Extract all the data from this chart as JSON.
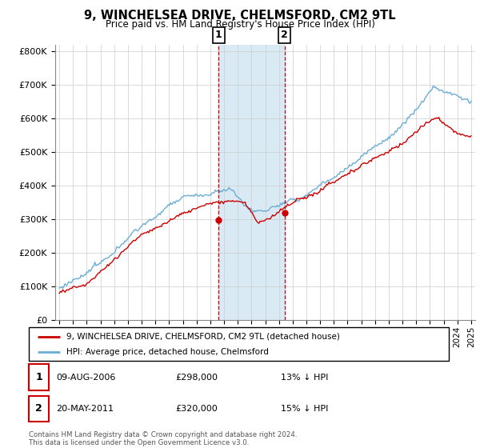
{
  "title": "9, WINCHELSEA DRIVE, CHELMSFORD, CM2 9TL",
  "subtitle": "Price paid vs. HM Land Registry's House Price Index (HPI)",
  "ylabel_ticks": [
    "£0",
    "£100K",
    "£200K",
    "£300K",
    "£400K",
    "£500K",
    "£600K",
    "£700K",
    "£800K"
  ],
  "ytick_values": [
    0,
    100000,
    200000,
    300000,
    400000,
    500000,
    600000,
    700000,
    800000
  ],
  "ylim": [
    0,
    820000
  ],
  "legend_line1": "9, WINCHELSEA DRIVE, CHELMSFORD, CM2 9TL (detached house)",
  "legend_line2": "HPI: Average price, detached house, Chelmsford",
  "sale1_date": "09-AUG-2006",
  "sale1_price": "£298,000",
  "sale1_pct": "13% ↓ HPI",
  "sale2_date": "20-MAY-2011",
  "sale2_price": "£320,000",
  "sale2_pct": "15% ↓ HPI",
  "footnote1": "Contains HM Land Registry data © Crown copyright and database right 2024.",
  "footnote2": "This data is licensed under the Open Government Licence v3.0.",
  "hpi_color": "#6baed6",
  "price_color": "#cc0000",
  "shade_color": "#daeaf5",
  "sale1_x": 2006.6,
  "sale1_y": 298000,
  "sale2_x": 2011.4,
  "sale2_y": 320000,
  "vline1_x": 2006.6,
  "vline2_x": 2011.4,
  "xlim_left": 1994.7,
  "xlim_right": 2025.3
}
